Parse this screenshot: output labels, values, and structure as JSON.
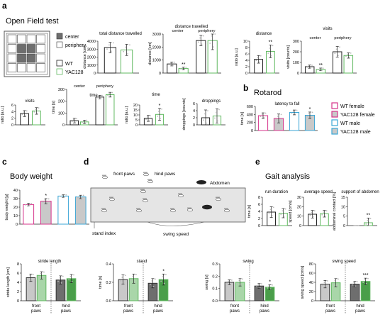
{
  "panels": {
    "a": {
      "letter": "a",
      "title": "Open Field test"
    },
    "b": {
      "letter": "b",
      "title": "Rotarod"
    },
    "c": {
      "letter": "c",
      "title": "Body weight"
    },
    "d": {
      "letter": "d"
    },
    "e": {
      "letter": "e",
      "title": "Gait analysis"
    }
  },
  "legend_a": {
    "center": "center",
    "periphery": "periphery",
    "wt": "WT",
    "yac": "YAC128"
  },
  "legend_b": [
    "WT female",
    "YAC128 female",
    "WT male",
    "YAC128 male"
  ],
  "diagram_d": {
    "front_paws": "front paws",
    "hind_paws": "hind paws",
    "abdomen": "Abdomen",
    "stand_index": "stand index",
    "swing_speed": "swing speed"
  },
  "colors": {
    "wt": "#222222",
    "yac": "#5fb85f",
    "wt_female": "#d6338a",
    "yac_female": "#d6338a",
    "wt_male": "#3aa6d6",
    "yac_male": "#3aa6d6",
    "grid_center": "#6e6e6e",
    "arena_fill": "#e5e5e5"
  },
  "chart_data": [
    {
      "id": "total_distance",
      "type": "bar",
      "title": "total distance travelled",
      "ylabel": "distance [cm]",
      "ylim": [
        0,
        4000
      ],
      "yticks": [
        "0",
        "1000",
        "2000",
        "3000",
        "4000"
      ],
      "series": [
        {
          "name": "WT",
          "values": [
            3200
          ],
          "err": [
            650
          ]
        },
        {
          "name": "YAC128",
          "values": [
            2900
          ],
          "err": [
            700
          ]
        }
      ],
      "annotations": []
    },
    {
      "id": "distance_travelled",
      "type": "bar",
      "title": "distance travelled",
      "group_labels": [
        "center",
        "periphery"
      ],
      "ylabel": "distance [cm]",
      "ylim": [
        0,
        3000
      ],
      "yticks": [
        "0",
        "1000",
        "2000",
        "3000"
      ],
      "categories": [
        "center",
        "periphery"
      ],
      "series": [
        {
          "name": "WT",
          "values": [
            700,
            2500
          ],
          "err": [
            150,
            400
          ]
        },
        {
          "name": "YAC128",
          "values": [
            350,
            2500
          ],
          "err": [
            100,
            700
          ]
        }
      ],
      "annotations": [
        "**",
        ""
      ]
    },
    {
      "id": "distance_ratio",
      "type": "bar",
      "title": "distance",
      "ylabel": "ratio [a.u.]",
      "ylim": [
        0,
        10
      ],
      "yticks": [
        "0",
        "2",
        "4",
        "6",
        "8",
        "10"
      ],
      "series": [
        {
          "name": "WT",
          "values": [
            4.3
          ],
          "err": [
            1.2
          ]
        },
        {
          "name": "YAC128",
          "values": [
            6.8
          ],
          "err": [
            2.0
          ]
        }
      ],
      "annotations": [
        "**"
      ]
    },
    {
      "id": "visits",
      "type": "bar",
      "title": "visits",
      "group_labels": [
        "center",
        "periphery"
      ],
      "ylabel": "visits [counts]",
      "ylim": [
        0,
        300
      ],
      "yticks": [
        "0",
        "100",
        "200",
        "300"
      ],
      "categories": [
        "center",
        "periphery"
      ],
      "series": [
        {
          "name": "WT",
          "values": [
            60,
            200
          ],
          "err": [
            15,
            50
          ]
        },
        {
          "name": "YAC128",
          "values": [
            35,
            165
          ],
          "err": [
            12,
            25
          ]
        }
      ],
      "annotations": [
        "**",
        ""
      ]
    },
    {
      "id": "visits_ratio",
      "type": "bar",
      "title": "visits",
      "ylabel": "ratio [a.u.]",
      "ylim": [
        0,
        6
      ],
      "yticks": [
        "0",
        "2",
        "4",
        "6"
      ],
      "series": [
        {
          "name": "WT",
          "values": [
            3.4
          ],
          "err": [
            0.9
          ]
        },
        {
          "name": "YAC128",
          "values": [
            4.2
          ],
          "err": [
            1.0
          ]
        }
      ],
      "annotations": []
    },
    {
      "id": "time",
      "type": "bar",
      "title": "time",
      "group_labels": [
        "center",
        "periphery"
      ],
      "ylabel": "time [s]",
      "ylim": [
        0,
        300
      ],
      "yticks": [
        "0",
        "100",
        "200",
        "300"
      ],
      "categories": [
        "center",
        "periphery"
      ],
      "series": [
        {
          "name": "WT",
          "values": [
            35,
            235
          ],
          "err": [
            20,
            15
          ]
        },
        {
          "name": "YAC128",
          "values": [
            25,
            255
          ],
          "err": [
            15,
            20
          ]
        }
      ],
      "annotations": [
        "",
        ""
      ]
    },
    {
      "id": "time_ratio",
      "type": "bar",
      "title": "time",
      "ylabel": "ratio [a.u.]",
      "ylim": [
        0,
        20
      ],
      "yticks": [
        "0",
        "5",
        "10",
        "15",
        "20"
      ],
      "series": [
        {
          "name": "WT",
          "values": [
            6.5
          ],
          "err": [
            3.0
          ]
        },
        {
          "name": "YAC128",
          "values": [
            10.5
          ],
          "err": [
            6.0
          ]
        }
      ],
      "annotations": [
        "*"
      ]
    },
    {
      "id": "droppings",
      "type": "bar",
      "title": "droppings",
      "ylabel": "droppings [counts]",
      "ylim": [
        0,
        6
      ],
      "yticks": [
        "0",
        "2",
        "4",
        "6"
      ],
      "series": [
        {
          "name": "WT",
          "values": [
            2.0
          ],
          "err": [
            2.2
          ]
        },
        {
          "name": "YAC128",
          "values": [
            2.5
          ],
          "err": [
            2.0
          ]
        }
      ],
      "annotations": []
    },
    {
      "id": "latency",
      "type": "bar",
      "title": "latency to fall",
      "ylabel": "time [s]",
      "ylim": [
        0,
        600
      ],
      "yticks": [
        "0",
        "200",
        "400",
        "600"
      ],
      "categories": [
        "WT female",
        "YAC128 female",
        "WT male",
        "YAC128 male"
      ],
      "values": [
        370,
        300,
        450,
        380
      ],
      "err": [
        70,
        110,
        60,
        80
      ],
      "annotations": [
        "",
        "",
        "",
        "*"
      ]
    },
    {
      "id": "body_weight",
      "type": "bar",
      "title": "",
      "ylabel": "body weight [g]",
      "ylim": [
        0,
        40
      ],
      "yticks": [
        "0",
        "10",
        "20",
        "30",
        "40"
      ],
      "categories": [
        "WT female",
        "YAC128 female",
        "WT male",
        "YAC128 male"
      ],
      "values": [
        23,
        27,
        33,
        32
      ],
      "err": [
        1.5,
        3.0,
        1.5,
        2.0
      ],
      "annotations": [
        "",
        "*",
        "",
        ""
      ]
    },
    {
      "id": "run_duration",
      "type": "bar",
      "title": "run duration",
      "ylabel": "time [s]",
      "ylim": [
        0,
        8
      ],
      "yticks": [
        "0",
        "2",
        "4",
        "6",
        "8"
      ],
      "series": [
        {
          "name": "WT",
          "values": [
            3.8
          ],
          "err": [
            1.5
          ]
        },
        {
          "name": "YAC128",
          "values": [
            3.5
          ],
          "err": [
            1.3
          ]
        }
      ],
      "annotations": []
    },
    {
      "id": "average_speed",
      "type": "bar",
      "title": "average speed",
      "ylabel": "speed [cm/s]",
      "ylim": [
        0,
        30
      ],
      "yticks": [
        "0",
        "10",
        "20",
        "30"
      ],
      "series": [
        {
          "name": "WT",
          "values": [
            12
          ],
          "err": [
            4
          ]
        },
        {
          "name": "YAC128",
          "values": [
            12.5
          ],
          "err": [
            3.5
          ]
        }
      ],
      "annotations": []
    },
    {
      "id": "support_abdomen",
      "type": "bar",
      "title": "support of abdomen",
      "ylabel": "abdominal contact [%]",
      "ylim": [
        0,
        15
      ],
      "yticks": [
        "0",
        "5",
        "10",
        "15"
      ],
      "series": [
        {
          "name": "WT",
          "values": [
            0
          ],
          "err": [
            0
          ]
        },
        {
          "name": "YAC128",
          "values": [
            1.5
          ],
          "err": [
            2.5
          ]
        }
      ],
      "annotations": [
        "**"
      ]
    },
    {
      "id": "stride_length",
      "type": "bar",
      "title": "stride length",
      "ylabel": "stride length [cm]",
      "ylim": [
        0,
        8
      ],
      "yticks": [
        "0",
        "2",
        "4",
        "6",
        "8"
      ],
      "categories": [
        "front paws",
        "hind paws"
      ],
      "series": [
        {
          "name": "WT",
          "values": [
            5.0,
            4.5
          ],
          "err": [
            0.8,
            0.9
          ]
        },
        {
          "name": "YAC128",
          "values": [
            5.5,
            4.8
          ],
          "err": [
            0.8,
            0.9
          ]
        }
      ],
      "annotations": [
        "",
        ""
      ]
    },
    {
      "id": "stand",
      "type": "bar",
      "title": "stand",
      "ylabel": "time [s]",
      "ylim": [
        0,
        0.4
      ],
      "yticks": [
        "0.0",
        "0.2",
        "0.4"
      ],
      "categories": [
        "front paws",
        "hind paws"
      ],
      "series": [
        {
          "name": "WT",
          "values": [
            0.23,
            0.19
          ],
          "err": [
            0.05,
            0.05
          ]
        },
        {
          "name": "YAC128",
          "values": [
            0.24,
            0.23
          ],
          "err": [
            0.05,
            0.06
          ]
        }
      ],
      "annotations": [
        "",
        "*"
      ]
    },
    {
      "id": "swing",
      "type": "bar",
      "title": "swing",
      "ylabel": "swing [s]",
      "ylim": [
        0,
        0.3
      ],
      "yticks": [
        "0.0",
        "0.1",
        "0.2",
        "0.3"
      ],
      "categories": [
        "front paws",
        "hind paws"
      ],
      "series": [
        {
          "name": "WT",
          "values": [
            0.15,
            0.12
          ],
          "err": [
            0.02,
            0.02
          ]
        },
        {
          "name": "YAC128",
          "values": [
            0.15,
            0.11
          ],
          "err": [
            0.03,
            0.02
          ]
        }
      ],
      "annotations": [
        "",
        "*"
      ]
    },
    {
      "id": "swing_speed",
      "type": "bar",
      "title": "swing speed",
      "ylabel": "swing speed [cm/s]",
      "ylim": [
        0,
        80
      ],
      "yticks": [
        "0",
        "20",
        "40",
        "60",
        "80"
      ],
      "categories": [
        "front paws",
        "hind paws"
      ],
      "series": [
        {
          "name": "WT",
          "values": [
            36,
            36
          ],
          "err": [
            8,
            6
          ]
        },
        {
          "name": "YAC128",
          "values": [
            39,
            42
          ],
          "err": [
            9,
            7
          ]
        }
      ],
      "annotations": [
        "",
        "***"
      ]
    }
  ]
}
